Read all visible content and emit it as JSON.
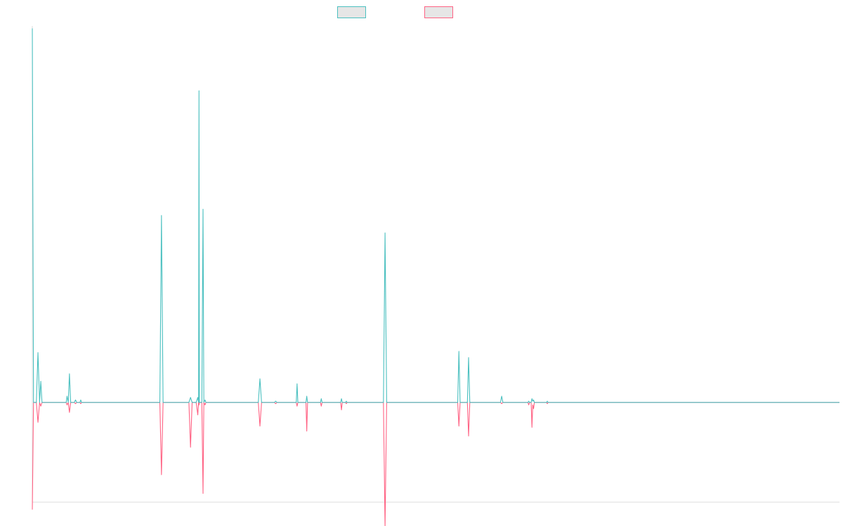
{
  "chart_data": {
    "type": "line",
    "x_range": [
      0,
      1000
    ],
    "ylim": [
      -0.8,
      3.02
    ],
    "grid": false,
    "legend_position": "top-center",
    "series": [
      {
        "color": "#4bc0c0",
        "points": [
          [
            0,
            3.0
          ],
          [
            1.5,
            0
          ],
          [
            5,
            0
          ],
          [
            7,
            0.4
          ],
          [
            9,
            0
          ],
          [
            10.5,
            0.17
          ],
          [
            12,
            0
          ],
          [
            30,
            0
          ],
          [
            42,
            0
          ],
          [
            43,
            0.05
          ],
          [
            44.5,
            0
          ],
          [
            46,
            0.23
          ],
          [
            47.5,
            0
          ],
          [
            52,
            0
          ],
          [
            53.5,
            0.02
          ],
          [
            55,
            0
          ],
          [
            59,
            0
          ],
          [
            60,
            0.02
          ],
          [
            61,
            0
          ],
          [
            63,
            0
          ],
          [
            158,
            0
          ],
          [
            160,
            1.5
          ],
          [
            162,
            0
          ],
          [
            194,
            0
          ],
          [
            196,
            0.04
          ],
          [
            198,
            0
          ],
          [
            203,
            0
          ],
          [
            205,
            0.04
          ],
          [
            206,
            0
          ],
          [
            206.5,
            2.5
          ],
          [
            207,
            0
          ],
          [
            210,
            0
          ],
          [
            211.5,
            1.55
          ],
          [
            212.5,
            0
          ],
          [
            214,
            0.02
          ],
          [
            215,
            0
          ],
          [
            280,
            0
          ],
          [
            282,
            0.19
          ],
          [
            284,
            0
          ],
          [
            300,
            0
          ],
          [
            301.5,
            0.01
          ],
          [
            303,
            0
          ],
          [
            327,
            0
          ],
          [
            328,
            0.15
          ],
          [
            329,
            0
          ],
          [
            339,
            0
          ],
          [
            340,
            0.05
          ],
          [
            341,
            0
          ],
          [
            357,
            0
          ],
          [
            358,
            0.03
          ],
          [
            359,
            0
          ],
          [
            382,
            0
          ],
          [
            383,
            0.03
          ],
          [
            384,
            0
          ],
          [
            388,
            0
          ],
          [
            389,
            0.01
          ],
          [
            390,
            0
          ],
          [
            435,
            0
          ],
          [
            437,
            1.36
          ],
          [
            439,
            0
          ],
          [
            527,
            0
          ],
          [
            528.5,
            0.41
          ],
          [
            530,
            0
          ],
          [
            539,
            0
          ],
          [
            540.5,
            0.36
          ],
          [
            542,
            0
          ],
          [
            580,
            0
          ],
          [
            581.5,
            0.05
          ],
          [
            583,
            0
          ],
          [
            614,
            0
          ],
          [
            615,
            0.01
          ],
          [
            616,
            0
          ],
          [
            618,
            0
          ],
          [
            619,
            0.03
          ],
          [
            620,
            0.01
          ],
          [
            621,
            0.02
          ],
          [
            622,
            0
          ],
          [
            637,
            0
          ],
          [
            638,
            0.01
          ],
          [
            639,
            0
          ],
          [
            1000,
            0
          ]
        ]
      },
      {
        "color": "#ff6384",
        "points": [
          [
            0,
            -0.86
          ],
          [
            1.5,
            0
          ],
          [
            5,
            0
          ],
          [
            7,
            -0.16
          ],
          [
            9,
            0
          ],
          [
            10.5,
            -0.03
          ],
          [
            12,
            0
          ],
          [
            30,
            0
          ],
          [
            42,
            0
          ],
          [
            43,
            -0.02
          ],
          [
            44.5,
            0
          ],
          [
            46,
            -0.08
          ],
          [
            47.5,
            0
          ],
          [
            52,
            0
          ],
          [
            53.5,
            -0.01
          ],
          [
            55,
            0
          ],
          [
            59,
            0
          ],
          [
            60,
            -0.01
          ],
          [
            61,
            0
          ],
          [
            63,
            0
          ],
          [
            158,
            0
          ],
          [
            160,
            -0.58
          ],
          [
            162,
            0
          ],
          [
            194,
            0
          ],
          [
            196,
            -0.36
          ],
          [
            198,
            0
          ],
          [
            203,
            0
          ],
          [
            205,
            -0.1
          ],
          [
            206,
            0
          ],
          [
            206.5,
            -0.02
          ],
          [
            207,
            0
          ],
          [
            210,
            0
          ],
          [
            211.5,
            -0.73
          ],
          [
            212.5,
            0
          ],
          [
            214,
            -0.02
          ],
          [
            215,
            0
          ],
          [
            280,
            0
          ],
          [
            282,
            -0.19
          ],
          [
            284,
            0
          ],
          [
            300,
            0
          ],
          [
            301.5,
            -0.01
          ],
          [
            303,
            0
          ],
          [
            327,
            0
          ],
          [
            328,
            -0.03
          ],
          [
            329,
            0
          ],
          [
            339,
            0
          ],
          [
            340,
            -0.23
          ],
          [
            341,
            0
          ],
          [
            357,
            0
          ],
          [
            358,
            -0.03
          ],
          [
            359,
            0
          ],
          [
            382,
            0
          ],
          [
            383,
            -0.06
          ],
          [
            384,
            0
          ],
          [
            388,
            0
          ],
          [
            389,
            -0.01
          ],
          [
            390,
            0
          ],
          [
            435,
            0
          ],
          [
            437,
            -1.0
          ],
          [
            439,
            0
          ],
          [
            527,
            0
          ],
          [
            528.5,
            -0.19
          ],
          [
            530,
            0
          ],
          [
            539,
            0
          ],
          [
            540.5,
            -0.27
          ],
          [
            542,
            0
          ],
          [
            580,
            0
          ],
          [
            581.5,
            -0.01
          ],
          [
            583,
            0
          ],
          [
            614,
            0
          ],
          [
            615,
            -0.02
          ],
          [
            616,
            0
          ],
          [
            618,
            0
          ],
          [
            619,
            -0.2
          ],
          [
            620,
            -0.02
          ],
          [
            621,
            -0.05
          ],
          [
            622,
            0
          ],
          [
            637,
            0
          ],
          [
            638,
            -0.01
          ],
          [
            639,
            0
          ],
          [
            1000,
            0
          ]
        ]
      }
    ]
  }
}
